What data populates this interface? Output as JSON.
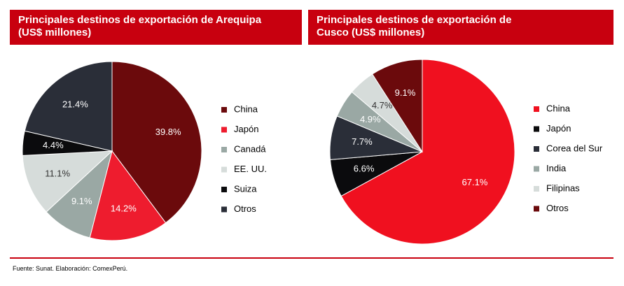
{
  "chart_data": [
    {
      "type": "pie",
      "title": "Principales destinos de exportación de Arequipa (US$ millones)",
      "categories": [
        "China",
        "Japón",
        "Canadá",
        "EE. UU.",
        "Suiza",
        "Otros"
      ],
      "values": [
        39.8,
        14.2,
        9.1,
        11.1,
        4.4,
        21.4
      ],
      "value_labels": [
        "39.8%",
        "14.2%",
        "9.1%",
        "11.1%",
        "4.4%",
        "21.4%"
      ],
      "colors": [
        "#6b0a0c",
        "#ee1c2e",
        "#9aa8a4",
        "#d6dcda",
        "#0b0b0d",
        "#2a2e38"
      ]
    },
    {
      "type": "pie",
      "title": "Principales destinos de exportación de Cusco (US$ millones)",
      "categories": [
        "China",
        "Japón",
        "Corea del Sur",
        "India",
        "Filipinas",
        "Otros"
      ],
      "values": [
        67.1,
        6.6,
        7.7,
        4.9,
        4.7,
        9.1
      ],
      "value_labels": [
        "67.1%",
        "6.6%",
        "7.7%",
        "4.9%",
        "4.7%",
        "9.1%"
      ],
      "colors": [
        "#f0101f",
        "#0b0b0d",
        "#2a2e38",
        "#9aa8a4",
        "#d6dcda",
        "#6b0a0c"
      ]
    }
  ],
  "source": "Fuente: Sunat. Elaboración: ComexPerú."
}
